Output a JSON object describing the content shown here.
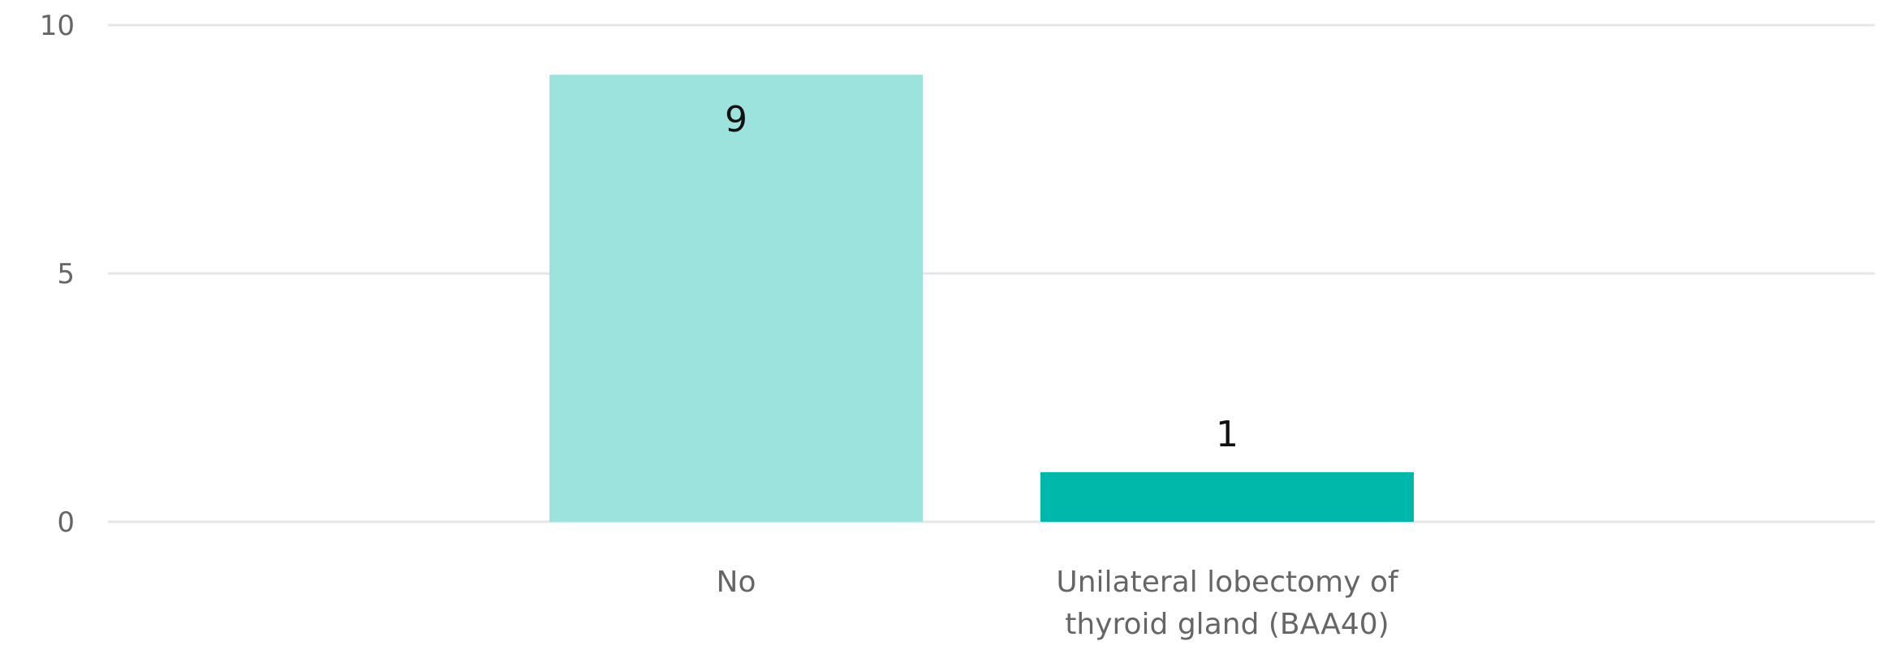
{
  "chart_data": {
    "type": "bar",
    "categories": [
      "No",
      "Unilateral lobectomy of thyroid gland (BAA40)"
    ],
    "category_lines": [
      [
        "No"
      ],
      [
        "Unilateral lobectomy of",
        "thyroid gland (BAA40)"
      ]
    ],
    "values": [
      9,
      1
    ],
    "data_labels": [
      "9",
      "1"
    ],
    "bar_colors": [
      "#9be3dc",
      "#00b8aa"
    ],
    "ylim": [
      0,
      10
    ],
    "yticks": [
      0,
      5,
      10
    ],
    "ytick_labels": [
      "0",
      "5",
      "10"
    ],
    "grid": true,
    "legend": false
  }
}
